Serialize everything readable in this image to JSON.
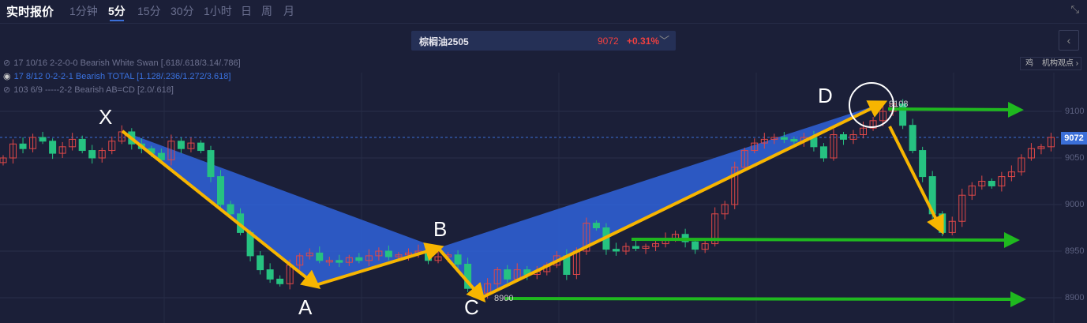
{
  "header": {
    "title": "实时报价",
    "timeframes": [
      "1分钟",
      "5分",
      "15分",
      "30分",
      "1小时",
      "日",
      "周",
      "月"
    ],
    "active": "5分"
  },
  "symbol": {
    "name": "棕榈油2505",
    "price": "9072",
    "change": "+0.31%"
  },
  "buttons": {
    "back": "‹",
    "views_icon": "鸡",
    "views": "机构观点 ›",
    "shrink": "⤡"
  },
  "indicators": [
    {
      "text": "17 10/16 2-2-0-0 Bearish White Swan [.618/.618/3.14/.786]",
      "visible": false
    },
    {
      "text": "17 8/12 0-2-2-1 Bearish TOTAL [1.128/.236/1.272/3.618]",
      "visible": true
    },
    {
      "text": "103 6/9 -----2-2 Bearish AB=CD [2.0/.618]",
      "visible": false
    }
  ],
  "pattern_labels": {
    "X": "X",
    "A": "A",
    "B": "B",
    "C": "C",
    "D": "D"
  },
  "price_labels": {
    "high": "9108",
    "low": "8900"
  },
  "colors": {
    "up": "#26c281",
    "down": "#e04848",
    "pattern": "#2f63db",
    "arrow": "#f7b500",
    "target": "#1fb81f"
  },
  "chart_data": {
    "type": "candlestick",
    "y_ticks": [
      "9100",
      "9050",
      "9000",
      "8950",
      "8900"
    ],
    "current_price": "9072",
    "closes": [
      9050,
      9065,
      9060,
      9072,
      9068,
      9055,
      9062,
      9070,
      9058,
      9050,
      9058,
      9068,
      9078,
      9065,
      9060,
      9055,
      9048,
      9068,
      9060,
      9066,
      9058,
      9030,
      9000,
      8990,
      8970,
      8945,
      8930,
      8920,
      8915,
      8935,
      8945,
      8948,
      8940,
      8940,
      8938,
      8943,
      8940,
      8945,
      8950,
      8944,
      8946,
      8948,
      8950,
      8940,
      8944,
      8946,
      8936,
      8910,
      8905,
      8915,
      8930,
      8920,
      8930,
      8925,
      8928,
      8935,
      8945,
      8925,
      8950,
      8980,
      8975,
      8952,
      8950,
      8955,
      8953,
      8955,
      8958,
      8963,
      8968,
      8960,
      8952,
      8958,
      8990,
      9000,
      9040,
      9058,
      9066,
      9070,
      9072,
      9070,
      9068,
      9072,
      9062,
      9050,
      9075,
      9070,
      9075,
      9082,
      9090,
      9100,
      9108,
      9085,
      9058,
      9030,
      8990,
      8970,
      8982,
      9010,
      9020,
      9025,
      9020,
      9030,
      9035,
      9050,
      9060,
      9062,
      9072
    ]
  }
}
